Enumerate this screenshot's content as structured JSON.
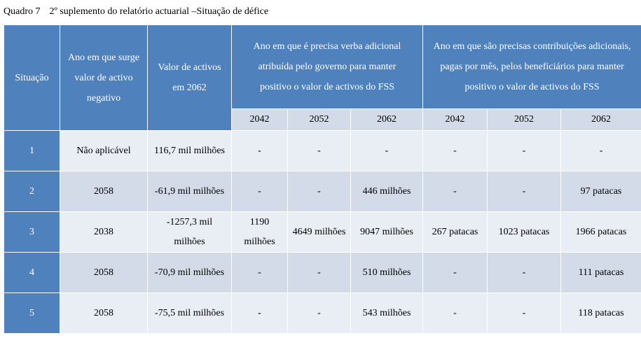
{
  "caption": {
    "number": "Quadro 7",
    "title": "2º suplemento do relatório actuarial –Situação de défice"
  },
  "headers": {
    "situacao": "Situação",
    "ano_negativo": "Ano em que surge valor de activo negativo",
    "valor_activos": "Valor de activos em 2062",
    "verba_governo": "Ano em que é precisa verba adicional atribuída pelo governo para manter positivo o valor de activos do FSS",
    "contribuicoes": "Ano em que são precisas contribuições adicionais, pagas por mês, pelos beneficiários para manter positivo o valor de activos do FSS"
  },
  "years": [
    "2042",
    "2052",
    "2062",
    "2042",
    "2052",
    "2062"
  ],
  "rows": [
    {
      "situacao": "1",
      "ano": "Não aplicável",
      "valor": "116,7 mil milhões",
      "g2042": "-",
      "g2052": "-",
      "g2062": "-",
      "c2042": "-",
      "c2052": "-",
      "c2062": "-"
    },
    {
      "situacao": "2",
      "ano": "2058",
      "valor": "-61,9 mil milhões",
      "g2042": "-",
      "g2052": "-",
      "g2062": "446 milhões",
      "c2042": "-",
      "c2052": "-",
      "c2062": "97 patacas"
    },
    {
      "situacao": "3",
      "ano": "2038",
      "valor": "-1257,3 mil milhões",
      "g2042": "1190 milhões",
      "g2052": "4649 milhões",
      "g2062": "9047 milhões",
      "c2042": "267 patacas",
      "c2052": "1023 patacas",
      "c2062": "1966 patacas"
    },
    {
      "situacao": "4",
      "ano": "2058",
      "valor": "-70,9 mil milhões",
      "g2042": "-",
      "g2052": "-",
      "g2062": "510 milhões",
      "c2042": "-",
      "c2052": "-",
      "c2062": "111 patacas"
    },
    {
      "situacao": "5",
      "ano": "2058",
      "valor": "-75,5 mil milhões",
      "g2042": "-",
      "g2052": "-",
      "g2062": "543 milhões",
      "c2042": "-",
      "c2052": "-",
      "c2062": "118 patacas"
    }
  ]
}
